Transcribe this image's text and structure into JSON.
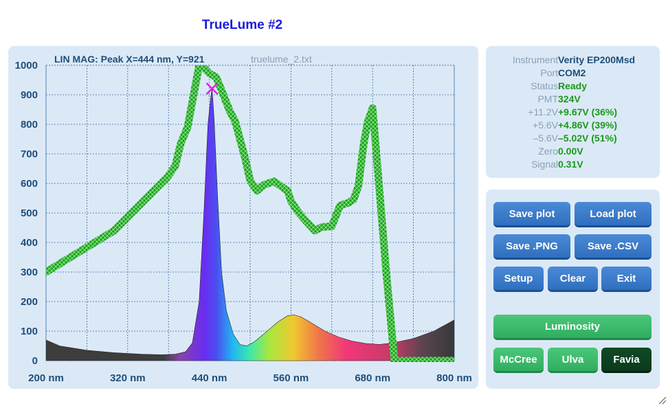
{
  "window": {
    "title": "TrueLume #2"
  },
  "plot": {
    "status_label": "LIN MAG: Peak X=444 nm, Y=921",
    "filename": "truelume_2.txt"
  },
  "chart_data": {
    "type": "line",
    "x_unit": "nm",
    "xlim": [
      200,
      800
    ],
    "ylim": [
      0,
      1000
    ],
    "x_ticks": [
      "200 nm",
      "320 nm",
      "440 nm",
      "560 nm",
      "680 nm",
      "800 nm"
    ],
    "y_ticks": [
      "0",
      "100",
      "200",
      "300",
      "400",
      "500",
      "600",
      "700",
      "800",
      "900",
      "1000"
    ],
    "grid": true,
    "peak_marker": {
      "x": 444,
      "y": 921,
      "color": "#e020e0"
    },
    "series": [
      {
        "style": "filled-spectrum",
        "x": [
          200,
          220,
          260,
          300,
          340,
          370,
          390,
          405,
          415,
          425,
          432,
          438,
          442,
          444,
          447,
          452,
          458,
          465,
          475,
          485,
          495,
          505,
          520,
          540,
          555,
          565,
          575,
          590,
          610,
          630,
          650,
          670,
          690,
          710,
          740,
          770,
          790,
          800
        ],
        "y": [
          70,
          50,
          35,
          27,
          22,
          20,
          22,
          30,
          60,
          200,
          500,
          800,
          890,
          921,
          820,
          560,
          300,
          170,
          90,
          55,
          50,
          62,
          90,
          130,
          152,
          155,
          148,
          128,
          100,
          80,
          66,
          58,
          55,
          60,
          75,
          100,
          125,
          138
        ]
      },
      {
        "style": "green-hatched-line",
        "color": "#19a019",
        "x": [
          200,
          300,
          378,
          390,
          398,
          408,
          417,
          425,
          433,
          440,
          450,
          458,
          470,
          478,
          492,
          500,
          510,
          520,
          535,
          555,
          560,
          570,
          580,
          595,
          605,
          620,
          632,
          645,
          652,
          659,
          667,
          673,
          680,
          695,
          700,
          712,
          800
        ],
        "y": [
          300,
          440,
          620,
          660,
          735,
          790,
          900,
          1000,
          990,
          972,
          960,
          915,
          845,
          810,
          690,
          610,
          575,
          595,
          607,
          575,
          540,
          505,
          478,
          440,
          452,
          455,
          525,
          535,
          545,
          590,
          735,
          810,
          855,
          440,
          300,
          0,
          0
        ]
      }
    ]
  },
  "instrument_info": {
    "rows": [
      {
        "label": "Instrument",
        "value": "Verity EP200Msd",
        "color": "blue"
      },
      {
        "label": "Port",
        "value": "COM2",
        "color": "blue"
      },
      {
        "label": "Status",
        "value": "Ready",
        "color": "green"
      },
      {
        "label": "PMT",
        "value": "324V",
        "color": "green"
      },
      {
        "label": "+11.2V",
        "value": "+9.67V (36%)",
        "color": "green"
      },
      {
        "label": "+5.6V",
        "value": "+4.86V (39%)",
        "color": "green"
      },
      {
        "label": "–5.6V",
        "value": "–5.02V (51%)",
        "color": "green"
      },
      {
        "label": "Zero",
        "value": "0.00V",
        "color": "green"
      },
      {
        "label": "Signal",
        "value": "0.31V",
        "color": "green"
      }
    ]
  },
  "buttons": {
    "save_plot": "Save plot",
    "load_plot": "Load plot",
    "save_png": "Save .PNG",
    "save_csv": "Save .CSV",
    "setup": "Setup",
    "clear": "Clear",
    "exit": "Exit",
    "luminosity": "Luminosity",
    "mccree": "McCree",
    "ulva": "Ulva",
    "favia": "Favia"
  },
  "colors": {
    "panel_bg": "#dbe9f7",
    "button_blue": "#3a7ccc",
    "button_green": "#3dbb6c",
    "button_selected": "#0d4221",
    "trace_green": "#19a019",
    "title_blue": "#1a1ae0"
  }
}
